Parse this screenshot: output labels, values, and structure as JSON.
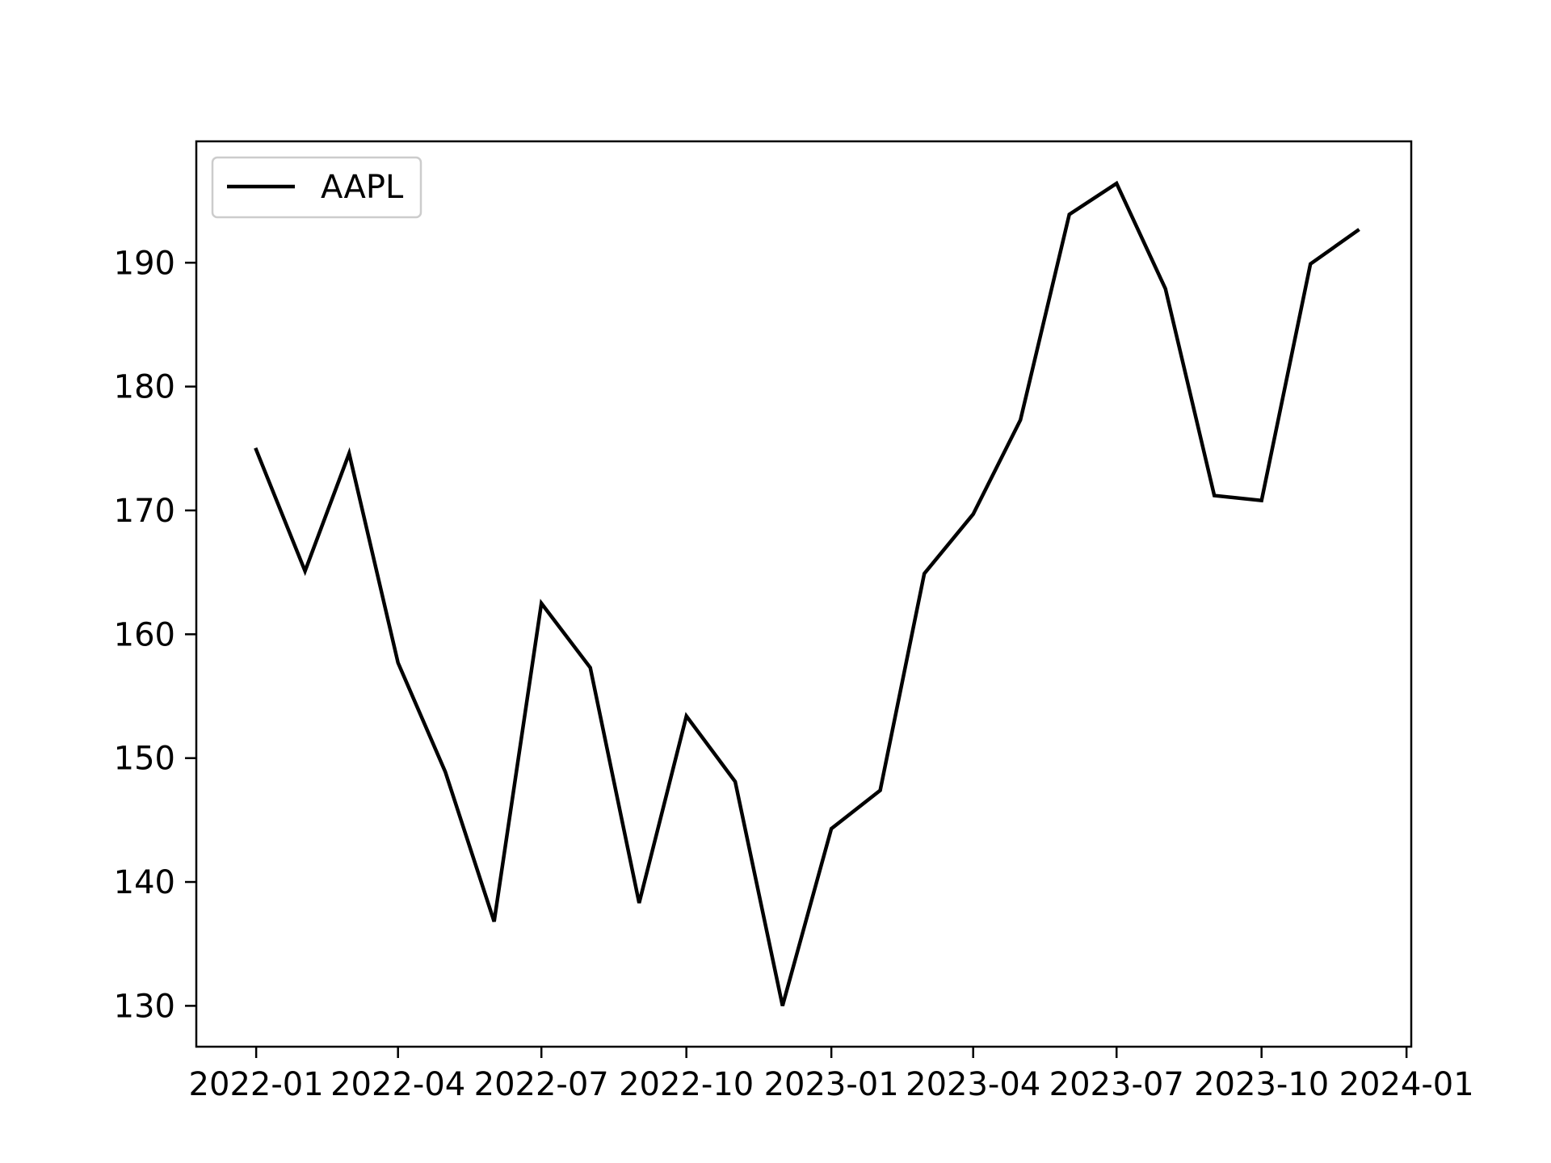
{
  "chart_data": {
    "type": "line",
    "title": "",
    "xlabel": "",
    "ylabel": "",
    "x_axis_type": "date",
    "xlim": [
      "2021-11-24",
      "2024-01-04"
    ],
    "ylim": [
      126.7,
      199.8
    ],
    "x_ticks": [
      {
        "value": "2022-01-01",
        "label": "2022-01"
      },
      {
        "value": "2022-04-01",
        "label": "2022-04"
      },
      {
        "value": "2022-07-01",
        "label": "2022-07"
      },
      {
        "value": "2022-10-01",
        "label": "2022-10"
      },
      {
        "value": "2023-01-01",
        "label": "2023-01"
      },
      {
        "value": "2023-04-01",
        "label": "2023-04"
      },
      {
        "value": "2023-07-01",
        "label": "2023-07"
      },
      {
        "value": "2023-10-01",
        "label": "2023-10"
      },
      {
        "value": "2024-01-01",
        "label": "2024-01"
      }
    ],
    "y_ticks": [
      {
        "value": 130,
        "label": "130"
      },
      {
        "value": 140,
        "label": "140"
      },
      {
        "value": 150,
        "label": "150"
      },
      {
        "value": 160,
        "label": "160"
      },
      {
        "value": 170,
        "label": "170"
      },
      {
        "value": 180,
        "label": "180"
      },
      {
        "value": 190,
        "label": "190"
      }
    ],
    "grid": false,
    "legend": {
      "position": "upper-left"
    },
    "series": [
      {
        "name": "AAPL",
        "color": "#000000",
        "points": [
          {
            "x": "2022-01-01",
            "y": 174.9
          },
          {
            "x": "2022-02-01",
            "y": 165.1
          },
          {
            "x": "2022-03-01",
            "y": 174.6
          },
          {
            "x": "2022-04-01",
            "y": 157.7
          },
          {
            "x": "2022-05-01",
            "y": 148.9
          },
          {
            "x": "2022-06-01",
            "y": 136.8
          },
          {
            "x": "2022-07-01",
            "y": 162.5
          },
          {
            "x": "2022-08-01",
            "y": 157.3
          },
          {
            "x": "2022-09-01",
            "y": 138.3
          },
          {
            "x": "2022-10-01",
            "y": 153.4
          },
          {
            "x": "2022-11-01",
            "y": 148.1
          },
          {
            "x": "2022-12-01",
            "y": 130.0
          },
          {
            "x": "2023-01-01",
            "y": 144.3
          },
          {
            "x": "2023-02-01",
            "y": 147.4
          },
          {
            "x": "2023-03-01",
            "y": 164.9
          },
          {
            "x": "2023-04-01",
            "y": 169.7
          },
          {
            "x": "2023-05-01",
            "y": 177.3
          },
          {
            "x": "2023-06-01",
            "y": 193.9
          },
          {
            "x": "2023-07-01",
            "y": 196.4
          },
          {
            "x": "2023-08-01",
            "y": 187.9
          },
          {
            "x": "2023-09-01",
            "y": 171.2
          },
          {
            "x": "2023-10-01",
            "y": 170.8
          },
          {
            "x": "2023-11-01",
            "y": 189.9
          },
          {
            "x": "2023-12-01",
            "y": 192.6
          }
        ]
      }
    ]
  }
}
